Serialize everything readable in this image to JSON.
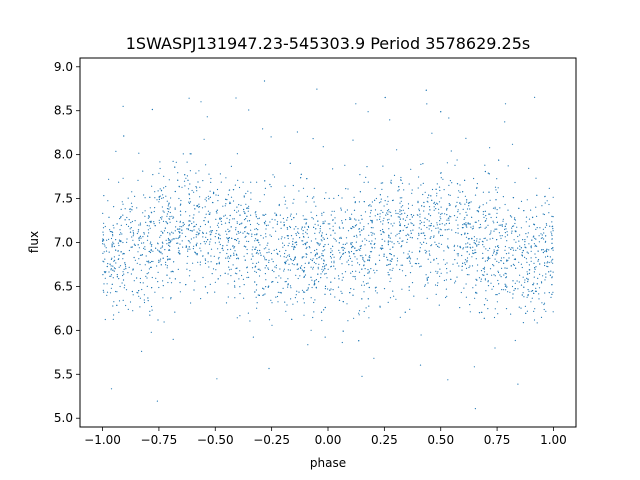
{
  "chart_data": {
    "type": "scatter",
    "title": "1SWASPJ131947.23-545303.9 Period 3578629.25s",
    "xlabel": "phase",
    "ylabel": "flux",
    "xlim": [
      -1.1,
      1.1
    ],
    "ylim": [
      4.9,
      9.1
    ],
    "xticks": [
      "−1.00",
      "−0.75",
      "−0.50",
      "−0.25",
      "0.00",
      "0.25",
      "0.50",
      "0.75",
      "1.00"
    ],
    "xtick_values": [
      -1.0,
      -0.75,
      -0.5,
      -0.25,
      0.0,
      0.25,
      0.5,
      0.75,
      1.0
    ],
    "yticks": [
      "5.0",
      "5.5",
      "6.0",
      "6.5",
      "7.0",
      "7.5",
      "8.0",
      "8.5",
      "9.0"
    ],
    "ytick_values": [
      5.0,
      5.5,
      6.0,
      6.5,
      7.0,
      7.5,
      8.0,
      8.5,
      9.0
    ],
    "grid": false,
    "legend": "none",
    "marker_color": "#1f77b4",
    "series": [
      {
        "profile_phase": [
          -1.0,
          -0.9,
          -0.8,
          -0.7,
          -0.6,
          -0.5,
          -0.4,
          -0.3,
          -0.2,
          -0.1,
          0.0,
          0.1,
          0.2,
          0.3,
          0.4,
          0.5,
          0.6,
          0.7,
          0.8,
          0.9,
          1.0
        ],
        "profile_mean_flux": [
          6.85,
          6.9,
          7.0,
          7.1,
          7.2,
          7.15,
          7.05,
          6.95,
          6.9,
          6.85,
          6.85,
          6.9,
          7.0,
          7.1,
          7.2,
          7.15,
          7.05,
          6.95,
          6.9,
          6.85,
          6.85
        ],
        "scatter_sigma": 0.35,
        "outlier_range": [
          5.1,
          8.9
        ]
      }
    ]
  }
}
